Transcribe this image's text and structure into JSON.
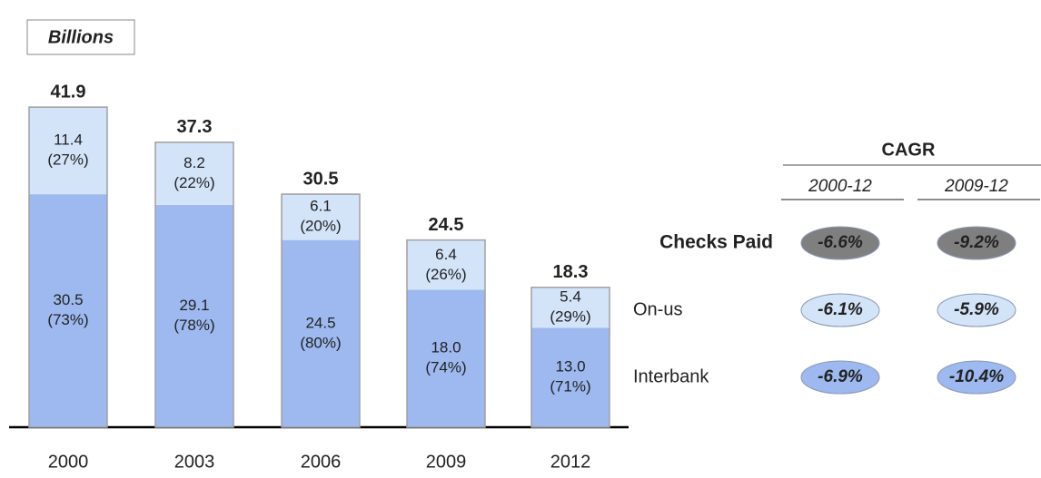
{
  "unit_label": "Billions",
  "chart_data": {
    "type": "stacked_bar",
    "categories": [
      "2000",
      "2003",
      "2006",
      "2009",
      "2012"
    ],
    "series": [
      {
        "name": "Interbank",
        "color": "#9db9ef",
        "values": [
          30.5,
          29.1,
          24.5,
          18.0,
          13.0
        ],
        "value_labels": [
          "30.5",
          "29.1",
          "24.5",
          "18.0",
          "13.0"
        ],
        "share_labels": [
          "(73%)",
          "(78%)",
          "(80%)",
          "(74%)",
          "(71%)"
        ],
        "cagr_labels": [
          "-6.9%",
          "-10.4%"
        ]
      },
      {
        "name": "On-us",
        "color": "#d3e4f9",
        "values": [
          11.4,
          8.2,
          6.1,
          6.4,
          5.4
        ],
        "share_labels": [
          "(27%)",
          "(22%)",
          "(20%)",
          "(26%)",
          "(29%)"
        ],
        "cagr_labels": [
          "-6.1%",
          "-5.9%"
        ]
      }
    ],
    "totals": [
      41.9,
      37.3,
      30.5,
      24.5,
      18.3
    ],
    "ylim": [
      0,
      45
    ]
  },
  "table": {
    "title": "CAGR",
    "periods": [
      "2000-12",
      "2009-12"
    ],
    "total_row": {
      "label": "Checks Paid",
      "color": "#7f7f7f",
      "values": [
        "-6.6%",
        "-9.2%"
      ]
    }
  }
}
